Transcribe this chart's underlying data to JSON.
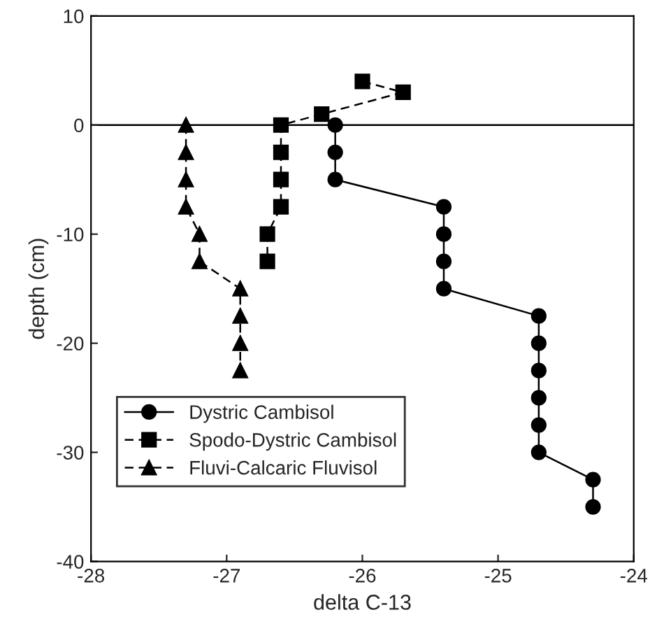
{
  "chart_data": {
    "type": "line",
    "xlabel": "delta C-13",
    "ylabel": "depth (cm)",
    "xlim": [
      -28,
      -24
    ],
    "xticks": [
      -28,
      -27,
      -26,
      -25,
      -24
    ],
    "ylim": [
      -40,
      10
    ],
    "yticks": [
      -40,
      -30,
      -20,
      -10,
      0,
      10
    ],
    "grid": false,
    "legend": "bottom left",
    "ref_lines": [
      {
        "axis": "y",
        "value": 0,
        "color": "#000000",
        "line_style": "solid"
      }
    ],
    "series": [
      {
        "name": "Dystric Cambisol",
        "color": "#000000",
        "marker": "circle",
        "line_style": "solid",
        "x": [
          -26.2,
          -26.2,
          -26.2,
          -25.4,
          -25.4,
          -25.4,
          -25.4,
          -24.7,
          -24.7,
          -24.7,
          -24.7,
          -24.7,
          -24.7,
          -24.3,
          -24.3
        ],
        "values": [
          0,
          -2.5,
          -5,
          -7.5,
          -10,
          -12.5,
          -15,
          -17.5,
          -20,
          -22.5,
          -25,
          -27.5,
          -30,
          -32.5,
          -35
        ]
      },
      {
        "name": "Spodo-Dystric Cambisol",
        "color": "#000000",
        "marker": "square",
        "line_style": "dashed",
        "x": [
          -26.0,
          -25.7,
          -26.3,
          -26.6,
          -26.6,
          -26.6,
          -26.6,
          -26.7,
          -26.7
        ],
        "values": [
          4,
          3,
          1,
          0,
          -2.5,
          -5,
          -7.5,
          -10,
          -12.5
        ]
      },
      {
        "name": "Fluvi-Calcaric Fluvisol",
        "color": "#000000",
        "marker": "triangle",
        "line_style": "dashed",
        "x": [
          -27.3,
          -27.3,
          -27.3,
          -27.3,
          -27.2,
          -27.2,
          -26.9,
          -26.9,
          -26.9,
          -26.9
        ],
        "values": [
          0,
          -2.5,
          -5,
          -7.5,
          -10,
          -12.5,
          -15,
          -17.5,
          -20,
          -22.5
        ]
      }
    ]
  }
}
